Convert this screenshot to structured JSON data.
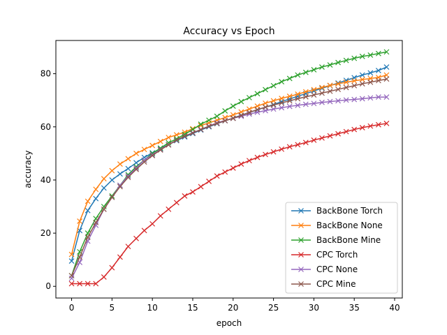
{
  "chart_data": {
    "type": "line",
    "title": "Accuracy vs Epoch",
    "xlabel": "epoch",
    "ylabel": "accuracy",
    "xlim": [
      -1.95,
      40.95
    ],
    "ylim": [
      -4.4,
      92.5
    ],
    "xticks": [
      0,
      5,
      10,
      15,
      20,
      25,
      30,
      35,
      40
    ],
    "yticks": [
      0,
      20,
      40,
      60,
      80
    ],
    "grid": false,
    "legend_position": "lower-right",
    "x": [
      0,
      1,
      2,
      3,
      4,
      5,
      6,
      7,
      8,
      9,
      10,
      11,
      12,
      13,
      14,
      15,
      16,
      17,
      18,
      19,
      20,
      21,
      22,
      23,
      24,
      25,
      26,
      27,
      28,
      29,
      30,
      31,
      32,
      33,
      34,
      35,
      36,
      37,
      38,
      39
    ],
    "series": [
      {
        "name": "BackBone Torch",
        "color": "#1f77b4",
        "values": [
          9.5,
          21,
          28.5,
          33,
          37,
          40,
          42.3,
          44.3,
          46.5,
          48.5,
          50.2,
          51.8,
          53.3,
          54.8,
          56.2,
          57.5,
          58.8,
          60,
          61.2,
          62.3,
          63.3,
          64.4,
          65.4,
          66.4,
          67.4,
          68.4,
          69.5,
          70.5,
          71.5,
          72.5,
          73.5,
          74.5,
          75.5,
          76.5,
          77.5,
          78.5,
          79.5,
          80.3,
          81.2,
          82.5
        ]
      },
      {
        "name": "BackBone None",
        "color": "#ff7f0e",
        "values": [
          12,
          24.5,
          32,
          36.5,
          40.5,
          43.5,
          46,
          48,
          50,
          51.5,
          53,
          54.5,
          56,
          57,
          58,
          59.3,
          60.5,
          61.5,
          62.5,
          63.5,
          64.5,
          65.6,
          66.7,
          67.8,
          68.9,
          69.8,
          70.7,
          71.5,
          72.3,
          73.2,
          74,
          74.8,
          75.6,
          76.2,
          76.8,
          77.3,
          77.8,
          78.2,
          78.6,
          79.5
        ]
      },
      {
        "name": "BackBone Mine",
        "color": "#2ca02c",
        "values": [
          4,
          13,
          20,
          25.5,
          30,
          34,
          38,
          42,
          45,
          47.5,
          50,
          52,
          54,
          55.5,
          57.2,
          59,
          61,
          62.5,
          64,
          66,
          67.8,
          69.5,
          71,
          72.5,
          74,
          75.5,
          77,
          78.2,
          79.5,
          80.5,
          81.5,
          82.5,
          83.3,
          84.2,
          85,
          85.8,
          86.5,
          87,
          87.6,
          88.2
        ]
      },
      {
        "name": "CPC Torch",
        "color": "#d62728",
        "values": [
          1,
          1,
          1,
          1,
          3.5,
          7,
          11,
          15,
          18,
          21,
          23.5,
          26.5,
          29,
          31.5,
          34,
          35.5,
          37.5,
          39.5,
          41.5,
          43,
          44.5,
          46,
          47.3,
          48.5,
          49.6,
          50.6,
          51.6,
          52.5,
          53.3,
          54.1,
          55,
          55.8,
          56.6,
          57.4,
          58.2,
          59,
          59.7,
          60.3,
          60.8,
          61.3
        ]
      },
      {
        "name": "CPC None",
        "color": "#9467bd",
        "values": [
          3,
          9,
          17,
          23,
          29,
          33.5,
          38,
          41.5,
          44.5,
          47.5,
          49.5,
          51.5,
          53.3,
          55,
          56.5,
          57.8,
          59,
          60.3,
          61.5,
          62.4,
          63.2,
          64,
          64.8,
          65.5,
          66.1,
          66.7,
          67.2,
          67.7,
          68.1,
          68.5,
          68.8,
          69.2,
          69.5,
          69.8,
          70.1,
          70.3,
          70.6,
          70.9,
          71.2,
          71.2
        ]
      },
      {
        "name": "CPC Mine",
        "color": "#8c564b",
        "values": [
          4,
          11,
          18.5,
          24,
          29,
          33.5,
          37.5,
          41,
          44,
          46.8,
          49.2,
          51.3,
          53.2,
          55,
          56.5,
          57.7,
          59,
          60.2,
          61.3,
          62.3,
          63.2,
          64.3,
          65.4,
          66.5,
          67.4,
          68.2,
          69,
          69.8,
          70.6,
          71.3,
          72,
          72.7,
          73.4,
          74.1,
          74.8,
          75.5,
          76.2,
          76.8,
          77.4,
          78
        ]
      }
    ]
  }
}
